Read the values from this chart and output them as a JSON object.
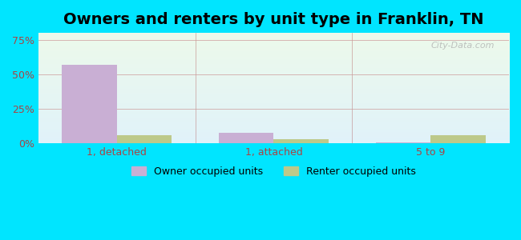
{
  "title": "Owners and renters by unit type in Franklin, TN",
  "categories": [
    "1, detached",
    "1, attached",
    "5 to 9"
  ],
  "owner_values": [
    57,
    8,
    1
  ],
  "renter_values": [
    6,
    3,
    6
  ],
  "owner_color": "#c9afd4",
  "renter_color": "#bdc98a",
  "yticks": [
    0,
    25,
    50,
    75
  ],
  "ytick_labels": [
    "0%",
    "25%",
    "50%",
    "75%"
  ],
  "ylim": [
    0,
    80
  ],
  "bar_width": 0.35,
  "background_outer": "#00e5ff",
  "background_inner_top": "#e8f5e9",
  "background_inner_bottom": "#dceefb",
  "legend_owner": "Owner occupied units",
  "legend_renter": "Renter occupied units",
  "title_fontsize": 14,
  "watermark": "City-Data.com",
  "tick_color": "#aa4444",
  "grid_color": "#cc9999"
}
